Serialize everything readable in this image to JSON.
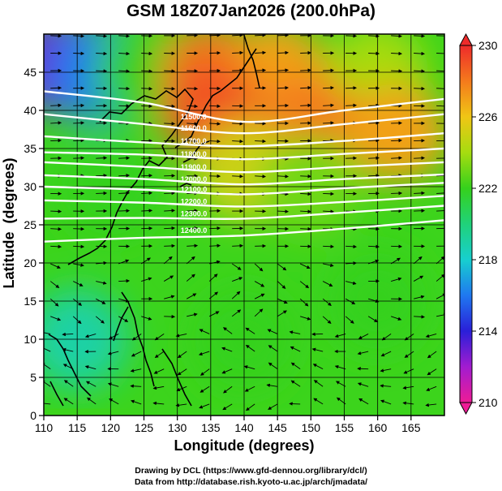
{
  "chart_data": {
    "type": "heatmap",
    "title": "GSM 18Z07Jan2026 (200.0hPa)",
    "xlabel": "Longitude (degrees)",
    "ylabel": "Latitude  (degrees)",
    "xlim": [
      110,
      170
    ],
    "ylim": [
      0,
      50
    ],
    "x_ticks": [
      110,
      115,
      120,
      125,
      130,
      135,
      140,
      145,
      150,
      155,
      160,
      165
    ],
    "y_ticks": [
      0,
      5,
      10,
      15,
      20,
      25,
      30,
      35,
      40,
      45
    ],
    "grid": true,
    "colorbar": {
      "ticks": [
        210,
        214,
        218,
        222,
        226,
        230
      ],
      "range": [
        210,
        230
      ],
      "stops": [
        {
          "v": 210,
          "color": "#ee1c96"
        },
        {
          "v": 212,
          "color": "#a21cd0"
        },
        {
          "v": 214,
          "color": "#2a1fd8"
        },
        {
          "v": 216,
          "color": "#1f78f0"
        },
        {
          "v": 218,
          "color": "#17cfcf"
        },
        {
          "v": 220,
          "color": "#20d27a"
        },
        {
          "v": 222,
          "color": "#35d11c"
        },
        {
          "v": 224,
          "color": "#a6dc10"
        },
        {
          "v": 226,
          "color": "#f0c615"
        },
        {
          "v": 228,
          "color": "#f47a1c"
        },
        {
          "v": 230,
          "color": "#ee2b2b"
        }
      ]
    },
    "temperature_field_samples": [
      {
        "lon": 112,
        "lat": 46,
        "value": 213
      },
      {
        "lon": 118,
        "lat": 45,
        "value": 216
      },
      {
        "lon": 125,
        "lat": 45,
        "value": 222
      },
      {
        "lon": 135,
        "lat": 45,
        "value": 228
      },
      {
        "lon": 145,
        "lat": 45,
        "value": 227
      },
      {
        "lon": 160,
        "lat": 45,
        "value": 224
      },
      {
        "lon": 135,
        "lat": 40,
        "value": 229
      },
      {
        "lon": 150,
        "lat": 38,
        "value": 228
      },
      {
        "lon": 163,
        "lat": 37,
        "value": 227
      },
      {
        "lon": 140,
        "lat": 32,
        "value": 225
      },
      {
        "lon": 150,
        "lat": 30,
        "value": 223
      },
      {
        "lon": 120,
        "lat": 30,
        "value": 222
      },
      {
        "lon": 115,
        "lat": 10,
        "value": 219
      },
      {
        "lon": 140,
        "lat": 10,
        "value": 222
      },
      {
        "lon": 160,
        "lat": 15,
        "value": 222
      }
    ],
    "contours": [
      {
        "label": "11500.0",
        "points": [
          [
            110,
            42.5
          ],
          [
            125,
            41
          ],
          [
            140,
            38.5
          ],
          [
            155,
            40
          ],
          [
            170,
            41.5
          ]
        ]
      },
      {
        "label": "11600.0",
        "points": [
          [
            110,
            39.5
          ],
          [
            125,
            38.2
          ],
          [
            140,
            37
          ],
          [
            155,
            38.2
          ],
          [
            170,
            39.5
          ]
        ]
      },
      {
        "label": "11700.0",
        "points": [
          [
            110,
            36.6
          ],
          [
            125,
            35.8
          ],
          [
            140,
            35.3
          ],
          [
            155,
            36
          ],
          [
            170,
            37
          ]
        ]
      },
      {
        "label": "11800.0",
        "points": [
          [
            110,
            34.5
          ],
          [
            125,
            34.2
          ],
          [
            140,
            33.6
          ],
          [
            155,
            34.3
          ],
          [
            170,
            35
          ]
        ]
      },
      {
        "label": "11900.0",
        "points": [
          [
            110,
            33.2
          ],
          [
            125,
            32.6
          ],
          [
            140,
            31.9
          ],
          [
            155,
            32.6
          ],
          [
            170,
            33.2
          ]
        ]
      },
      {
        "label": "12000.0",
        "points": [
          [
            110,
            31.5
          ],
          [
            125,
            31
          ],
          [
            140,
            30.3
          ],
          [
            155,
            31
          ],
          [
            170,
            31.6
          ]
        ]
      },
      {
        "label": "12100.0",
        "points": [
          [
            110,
            30
          ],
          [
            125,
            29.6
          ],
          [
            140,
            29
          ],
          [
            155,
            29.8
          ],
          [
            170,
            30.5
          ]
        ]
      },
      {
        "label": "12200.0",
        "points": [
          [
            110,
            28.2
          ],
          [
            125,
            27.9
          ],
          [
            140,
            27.4
          ],
          [
            155,
            28
          ],
          [
            170,
            28.8
          ]
        ]
      },
      {
        "label": "12300.0",
        "points": [
          [
            110,
            25.8
          ],
          [
            125,
            25.9
          ],
          [
            140,
            25.8
          ],
          [
            155,
            26.6
          ],
          [
            170,
            27.5
          ]
        ]
      },
      {
        "label": "12400.0",
        "points": [
          [
            110,
            22.8
          ],
          [
            125,
            23.3
          ],
          [
            140,
            23.6
          ],
          [
            155,
            24.5
          ],
          [
            170,
            25.6
          ]
        ]
      }
    ]
  },
  "credits": {
    "line1": "Drawing by DCL (https://www.gfd-dennou.org/library/dcl/)",
    "line2": "Data from http://database.rish.kyoto-u.ac.jp/arch/jmadata/"
  },
  "colors": {
    "frame": "#000000",
    "contour": "#ffffff",
    "streamline": "#000000",
    "coastline": "#000000"
  }
}
